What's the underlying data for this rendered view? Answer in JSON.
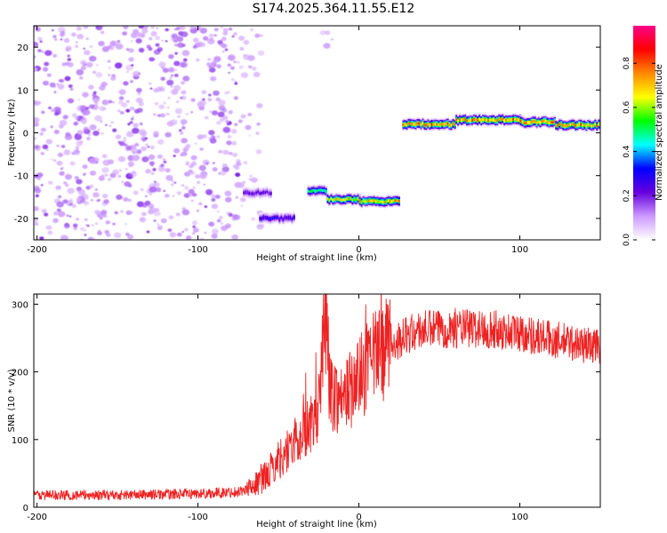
{
  "title": "S174.2025.364.11.55.E12",
  "colors": {
    "bg": "#ffffff",
    "axis": "#000000",
    "snr_line": "#ee2222"
  },
  "chart_data": [
    {
      "type": "heatmap",
      "name": "spectrogram",
      "xlabel": "Height of straight line (km)",
      "ylabel": "Frequency (Hz)",
      "xlim": [
        -202,
        150
      ],
      "ylim": [
        -25,
        25
      ],
      "xticks": [
        -200,
        -100,
        0,
        100
      ],
      "yticks": [
        -20,
        -10,
        0,
        10,
        20
      ],
      "colorbar": {
        "label": "Normalized spectral amplitude",
        "range": [
          0.0,
          0.97
        ],
        "ticks": [
          0.0,
          0.2,
          0.4,
          0.6,
          0.8
        ],
        "tick_labels": [
          "0.0",
          "0.2",
          "0.4",
          "0.6",
          "0.8"
        ],
        "colormap": [
          "#ffffff",
          "#cc99ff",
          "#6600dd",
          "#0000ff",
          "#00ffff",
          "#00ff00",
          "#ffff00",
          "#ff8800",
          "#ff0000",
          "#ff0088"
        ]
      },
      "regions": [
        {
          "kind": "noise",
          "x": [
            -202,
            -75
          ],
          "freq": [
            -25,
            25
          ],
          "level": 0.08
        },
        {
          "kind": "noise",
          "x": [
            -75,
            -60
          ],
          "freq": [
            -25,
            25
          ],
          "level": 0.04
        },
        {
          "kind": "noise",
          "x": [
            -25,
            -15
          ],
          "freq": [
            18,
            25
          ],
          "level": 0.04
        }
      ],
      "tone_segments": [
        {
          "x": [
            -72,
            -55
          ],
          "freq": -14,
          "amp": 0.25
        },
        {
          "x": [
            -62,
            -40
          ],
          "freq": -20,
          "amp": 0.3
        },
        {
          "x": [
            -32,
            -20
          ],
          "freq": -13.5,
          "amp": 0.55
        },
        {
          "x": [
            -20,
            0
          ],
          "freq": -15.5,
          "amp": 0.75
        },
        {
          "x": [
            0,
            25
          ],
          "freq": -16,
          "amp": 0.8
        },
        {
          "x": [
            27,
            60
          ],
          "freq": 2,
          "amp": 0.85
        },
        {
          "x": [
            60,
            100
          ],
          "freq": 3,
          "amp": 0.85
        },
        {
          "x": [
            100,
            122
          ],
          "freq": 2.5,
          "amp": 0.85
        },
        {
          "x": [
            122,
            150
          ],
          "freq": 1.8,
          "amp": 0.85
        }
      ]
    },
    {
      "type": "line",
      "name": "snr",
      "xlabel": "Height of straight line (km)",
      "ylabel": "SNR (10 * v/v)",
      "xlim": [
        -202,
        150
      ],
      "ylim": [
        0,
        315
      ],
      "xticks": [
        -200,
        -100,
        0,
        100
      ],
      "yticks": [
        0,
        100,
        200,
        300
      ],
      "series": [
        {
          "name": "SNR",
          "color": "#ee2222",
          "x": [
            -200,
            -150,
            -100,
            -80,
            -70,
            -60,
            -50,
            -40,
            -30,
            -25,
            -21,
            -18,
            -10,
            0,
            10,
            20,
            30,
            40,
            60,
            80,
            100,
            120,
            140,
            150
          ],
          "y": [
            18,
            18,
            20,
            22,
            25,
            40,
            70,
            95,
            120,
            140,
            300,
            170,
            160,
            190,
            220,
            240,
            255,
            262,
            265,
            263,
            258,
            248,
            240,
            238
          ]
        }
      ]
    }
  ]
}
